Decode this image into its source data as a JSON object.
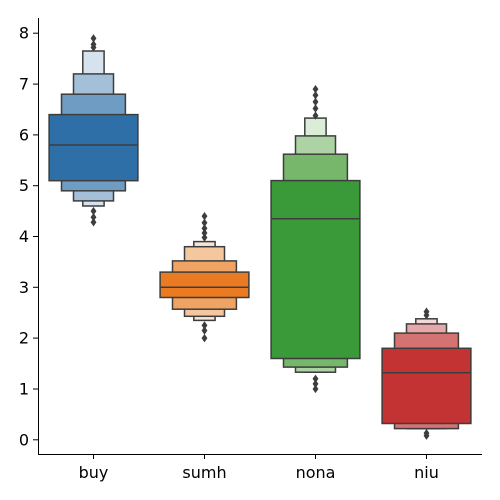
{
  "chart_data": {
    "type": "boxen",
    "title": "",
    "xlabel": "",
    "ylabel": "",
    "ylim": [
      -0.28,
      8.3
    ],
    "yticks": [
      0,
      1,
      2,
      3,
      4,
      5,
      6,
      7,
      8
    ],
    "grid": false,
    "legend": "none",
    "categories": [
      {
        "name": "buy",
        "color": "#2f6fa8",
        "median": 5.8,
        "levels": [
          {
            "lo": 5.1,
            "hi": 6.4,
            "shade": "#2f6fa8"
          },
          {
            "lo": 4.9,
            "hi": 6.8,
            "shade": "#6f9cc2"
          },
          {
            "lo": 4.7,
            "hi": 7.2,
            "shade": "#a4c0d9"
          },
          {
            "lo": 4.6,
            "hi": 7.65,
            "shade": "#d6e3ee"
          }
        ],
        "outliers": [
          4.28,
          4.38,
          4.5,
          7.72,
          7.78,
          7.9
        ]
      },
      {
        "name": "sumh",
        "color": "#ea7b22",
        "median": 3.0,
        "levels": [
          {
            "lo": 2.8,
            "hi": 3.3,
            "shade": "#ea7b22"
          },
          {
            "lo": 2.57,
            "hi": 3.52,
            "shade": "#f0a463"
          },
          {
            "lo": 2.43,
            "hi": 3.8,
            "shade": "#f4c79e"
          },
          {
            "lo": 2.35,
            "hi": 3.9,
            "shade": "#f8e6d5"
          }
        ],
        "outliers": [
          2.0,
          2.15,
          2.25,
          3.98,
          4.07,
          4.16,
          4.27,
          4.4
        ]
      },
      {
        "name": "nona",
        "color": "#3a9a3a",
        "median": 4.35,
        "levels": [
          {
            "lo": 1.6,
            "hi": 5.1,
            "shade": "#3a9a3a"
          },
          {
            "lo": 1.43,
            "hi": 5.62,
            "shade": "#76b76b"
          },
          {
            "lo": 1.33,
            "hi": 5.98,
            "shade": "#add3a4"
          },
          {
            "lo": 1.33,
            "hi": 6.33,
            "shade": "#dbecd7"
          }
        ],
        "outliers": [
          1.0,
          1.1,
          1.2,
          6.38,
          6.52,
          6.65,
          6.78,
          6.9
        ]
      },
      {
        "name": "niu",
        "color": "#c43333",
        "median": 1.32,
        "levels": [
          {
            "lo": 0.32,
            "hi": 1.8,
            "shade": "#c43333"
          },
          {
            "lo": 0.22,
            "hi": 2.1,
            "shade": "#d57373"
          },
          {
            "lo": 0.22,
            "hi": 2.28,
            "shade": "#e6a8a8"
          },
          {
            "lo": 0.22,
            "hi": 2.38,
            "shade": "#f4d9d9"
          }
        ],
        "outliers": [
          0.08,
          0.13,
          2.45,
          2.52
        ]
      }
    ]
  }
}
